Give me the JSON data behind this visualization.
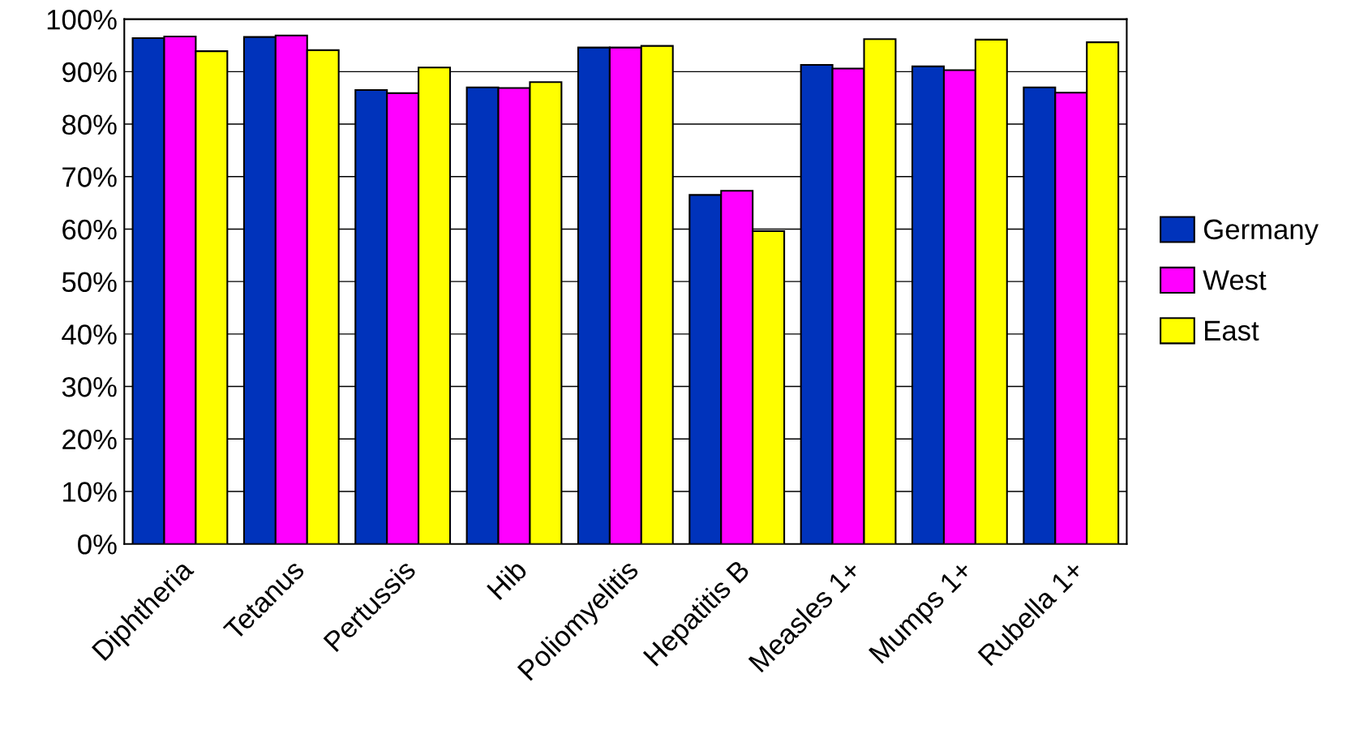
{
  "chart_data": {
    "type": "bar",
    "categories": [
      "Diphtheria",
      "Tetanus",
      "Pertussis",
      "Hib",
      "Poliomyelitis",
      "Hepatitis B",
      "Measles 1+",
      "Mumps 1+",
      "Rubella 1+"
    ],
    "series": [
      {
        "name": "Germany",
        "color": "#0033bb",
        "values": [
          96.4,
          96.6,
          86.5,
          87.0,
          94.6,
          66.5,
          91.3,
          91.0,
          87.0
        ]
      },
      {
        "name": "West",
        "color": "#ff00ff",
        "values": [
          96.7,
          96.9,
          85.9,
          86.9,
          94.6,
          67.3,
          90.6,
          90.3,
          86.0
        ]
      },
      {
        "name": "East",
        "color": "#ffff00",
        "values": [
          93.9,
          94.1,
          90.8,
          88.0,
          94.9,
          59.6,
          96.2,
          96.1,
          95.6
        ]
      }
    ],
    "ylim": [
      0,
      100
    ],
    "yticks": [
      {
        "value": 0,
        "label": "0%"
      },
      {
        "value": 10,
        "label": "10%"
      },
      {
        "value": 20,
        "label": "20%"
      },
      {
        "value": 30,
        "label": "30%"
      },
      {
        "value": 40,
        "label": "40%"
      },
      {
        "value": 50,
        "label": "50%"
      },
      {
        "value": 60,
        "label": "60%"
      },
      {
        "value": 70,
        "label": "70%"
      },
      {
        "value": 80,
        "label": "80%"
      },
      {
        "value": 90,
        "label": "90%"
      },
      {
        "value": 100,
        "label": "100%"
      }
    ],
    "grid": "y",
    "legend": "right"
  }
}
